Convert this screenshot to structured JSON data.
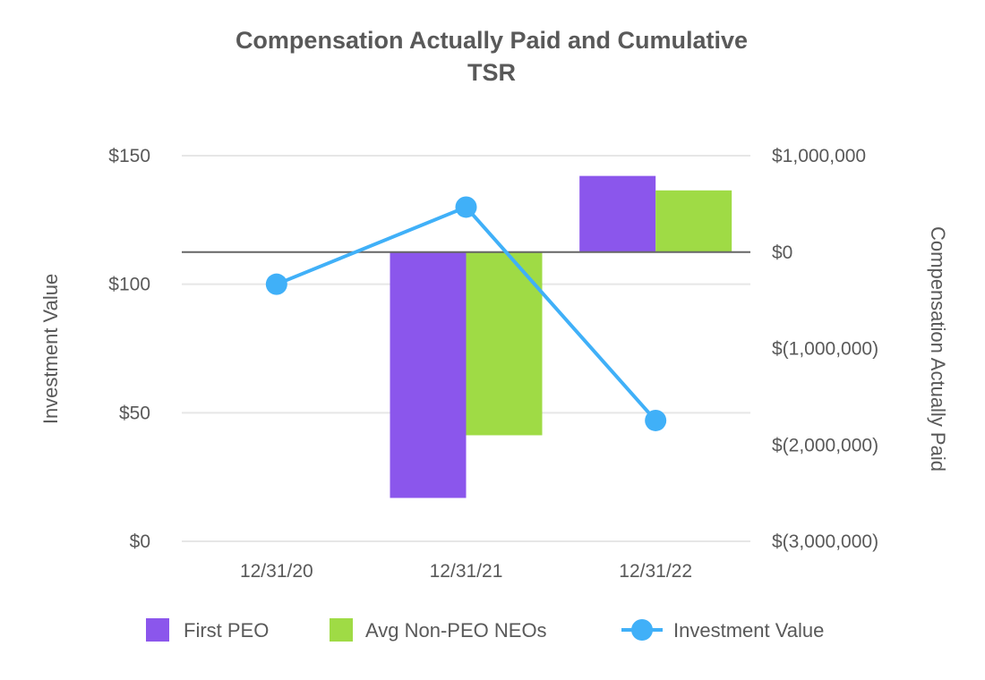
{
  "chart_data": {
    "type": "bar+line",
    "title_lines": [
      "Compensation Actually Paid and Cumulative",
      "TSR"
    ],
    "categories": [
      "12/31/20",
      "12/31/21",
      "12/31/22"
    ],
    "left_axis": {
      "label": "Investment Value",
      "range": [
        0,
        150
      ],
      "ticks": [
        "$0",
        "$50",
        "$100",
        "$150"
      ],
      "tick_values": [
        0,
        50,
        100,
        150
      ]
    },
    "right_axis": {
      "label": "Compensation Actually Paid",
      "range": [
        -3000000,
        1000000
      ],
      "ticks": [
        "$(3,000,000)",
        "$(2,000,000)",
        "$(1,000,000)",
        "$0",
        "$1,000,000"
      ],
      "tick_values": [
        -3000000,
        -2000000,
        -1000000,
        0,
        1000000
      ]
    },
    "series": [
      {
        "name": "First PEO",
        "type": "bar",
        "axis": "right",
        "color": "#8b56ec",
        "values": [
          null,
          -2550000,
          790000
        ]
      },
      {
        "name": "Avg Non-PEO NEOs",
        "type": "bar",
        "axis": "right",
        "color": "#9fdb45",
        "values": [
          null,
          -1900000,
          640000
        ]
      },
      {
        "name": "Investment Value",
        "type": "line",
        "axis": "left",
        "color": "#40b0f8",
        "values": [
          100,
          130,
          47
        ]
      }
    ],
    "grid": true,
    "legend_position": "bottom"
  }
}
